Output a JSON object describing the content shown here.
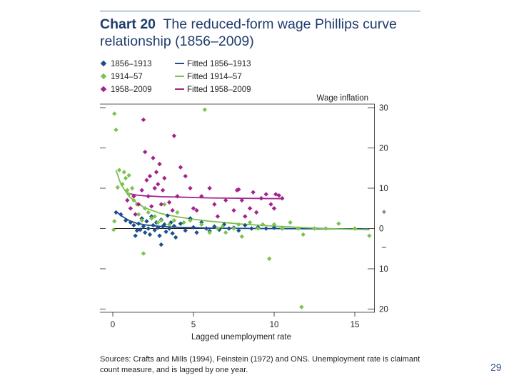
{
  "header": {
    "chart_number": "Chart 20",
    "title_line1": "The reduced-form wage Phillips curve",
    "title_line2": "relationship (1856–2009)"
  },
  "legend": {
    "markers": [
      {
        "label": "1856–1913",
        "color": "#1c4f8c"
      },
      {
        "label": "1914–57",
        "color": "#7dc24f"
      },
      {
        "label": "1958–2009",
        "color": "#a3238e"
      }
    ],
    "lines": [
      {
        "label": "Fitted 1856–1913",
        "color": "#1c4f8c"
      },
      {
        "label": "Fitted 1914–57",
        "color": "#7dc24f"
      },
      {
        "label": "Fitted 1958–2009",
        "color": "#a3238e"
      }
    ]
  },
  "axis": {
    "y_title": "Wage inflation",
    "x_title": "Lagged unemployment rate",
    "plus_sign": "+",
    "minus_sign": "–"
  },
  "footer": {
    "sources_line1": "Sources: Crafts and Mills (1994), Feinstein (1972) and ONS. Unemployment rate is claimant",
    "sources_line2": "count measure, and is lagged by one year."
  },
  "page_number": "29",
  "chart_data": {
    "type": "scatter",
    "title": "The reduced-form wage Phillips curve relationship (1856–2009)",
    "xlabel": "Lagged unemployment rate",
    "ylabel": "Wage inflation",
    "xlim": [
      -0.5,
      16
    ],
    "ylim": [
      -20,
      30
    ],
    "x_ticks": [
      0,
      5,
      10,
      15
    ],
    "y_ticks": [
      30,
      20,
      10,
      0,
      -10,
      -20
    ],
    "y_tick_labels": [
      "30",
      "20",
      "10",
      "0",
      "10",
      "20"
    ],
    "series": [
      {
        "name": "1856–1913",
        "color": "#1c4f8c",
        "points": [
          [
            0.2,
            4
          ],
          [
            0.5,
            3.5
          ],
          [
            0.8,
            2
          ],
          [
            1.1,
            1.5
          ],
          [
            1.3,
            0.8
          ],
          [
            1.5,
            -0.5
          ],
          [
            1.4,
            -1.8
          ],
          [
            1.6,
            1.2
          ],
          [
            1.7,
            -0.3
          ],
          [
            1.8,
            2.5
          ],
          [
            1.9,
            0.5
          ],
          [
            2.0,
            -1
          ],
          [
            2.1,
            1.8
          ],
          [
            2.2,
            0
          ],
          [
            2.3,
            -1.5
          ],
          [
            2.4,
            3
          ],
          [
            2.5,
            0.8
          ],
          [
            2.6,
            -0.4
          ],
          [
            2.7,
            1.5
          ],
          [
            2.8,
            0.2
          ],
          [
            2.9,
            -1.8
          ],
          [
            3.0,
            2.2
          ],
          [
            3.0,
            -4
          ],
          [
            3.1,
            0.5
          ],
          [
            3.2,
            1
          ],
          [
            3.3,
            -0.8
          ],
          [
            3.4,
            3.2
          ],
          [
            3.5,
            0
          ],
          [
            3.6,
            1.5
          ],
          [
            3.7,
            -1.2
          ],
          [
            3.8,
            0.6
          ],
          [
            3.9,
            -2.2
          ],
          [
            4.2,
            1.2
          ],
          [
            4.5,
            -0.5
          ],
          [
            4.8,
            2.5
          ],
          [
            5.0,
            0.3
          ],
          [
            5.2,
            -1
          ],
          [
            5.5,
            1.5
          ],
          [
            5.8,
            0
          ],
          [
            6.0,
            -0.6
          ],
          [
            6.3,
            0.5
          ],
          [
            6.6,
            -0.3
          ],
          [
            6.9,
            1.0
          ],
          [
            7.2,
            0
          ],
          [
            7.5,
            0.2
          ],
          [
            7.8,
            -0.5
          ],
          [
            8.2,
            0.8
          ],
          [
            8.6,
            0
          ],
          [
            9.0,
            0.3
          ],
          [
            9.5,
            0
          ],
          [
            10.0,
            0.2
          ],
          [
            10.5,
            0
          ]
        ]
      },
      {
        "name": "1914–57",
        "color": "#7dc24f",
        "points": [
          [
            0.1,
            28.5
          ],
          [
            0.2,
            24.5
          ],
          [
            0.1,
            1.8
          ],
          [
            0.05,
            -0.3
          ],
          [
            0.3,
            10.2
          ],
          [
            0.4,
            14.5
          ],
          [
            0.6,
            11
          ],
          [
            0.7,
            14
          ],
          [
            0.8,
            12.5
          ],
          [
            0.9,
            9.5
          ],
          [
            1.0,
            8.5
          ],
          [
            1.0,
            13.2
          ],
          [
            1.2,
            10
          ],
          [
            1.3,
            7
          ],
          [
            1.5,
            6
          ],
          [
            1.6,
            3.5
          ],
          [
            1.8,
            2
          ],
          [
            1.9,
            -6.2
          ],
          [
            2.0,
            5
          ],
          [
            2.2,
            4
          ],
          [
            2.4,
            2.5
          ],
          [
            2.6,
            3
          ],
          [
            2.8,
            1.5
          ],
          [
            3.0,
            2
          ],
          [
            3.2,
            6
          ],
          [
            3.5,
            1
          ],
          [
            3.8,
            2
          ],
          [
            4.0,
            4
          ],
          [
            4.4,
            1.5
          ],
          [
            4.8,
            2
          ],
          [
            5.5,
            1
          ],
          [
            5.7,
            29.5
          ],
          [
            6.0,
            -1
          ],
          [
            6.5,
            0
          ],
          [
            6.8,
            0.5
          ],
          [
            7.0,
            -1
          ],
          [
            7.5,
            0
          ],
          [
            7.8,
            1
          ],
          [
            8.0,
            -2
          ],
          [
            8.5,
            1.5
          ],
          [
            9.0,
            0
          ],
          [
            9.3,
            1
          ],
          [
            9.7,
            -7.5
          ],
          [
            10.0,
            1
          ],
          [
            10.5,
            0
          ],
          [
            11.0,
            1.5
          ],
          [
            11.5,
            0
          ],
          [
            11.7,
            -19.5
          ],
          [
            11.8,
            -1.5
          ],
          [
            12.5,
            0
          ],
          [
            13.2,
            0
          ],
          [
            14.0,
            1.2
          ],
          [
            15.0,
            0
          ],
          [
            15.9,
            -1.8
          ]
        ]
      },
      {
        "name": "1958–2009",
        "color": "#a3238e",
        "points": [
          [
            0.9,
            7
          ],
          [
            1.1,
            5
          ],
          [
            1.3,
            8
          ],
          [
            1.4,
            3.5
          ],
          [
            1.6,
            6
          ],
          [
            1.8,
            9.5
          ],
          [
            1.9,
            27
          ],
          [
            2.0,
            19
          ],
          [
            2.1,
            12
          ],
          [
            2.2,
            8
          ],
          [
            2.3,
            13
          ],
          [
            2.4,
            5.5
          ],
          [
            2.5,
            17.5
          ],
          [
            2.6,
            10
          ],
          [
            2.7,
            14
          ],
          [
            2.8,
            11
          ],
          [
            2.9,
            16
          ],
          [
            3.0,
            6
          ],
          [
            3.1,
            9.5
          ],
          [
            3.2,
            12.5
          ],
          [
            3.5,
            6.5
          ],
          [
            3.7,
            4.5
          ],
          [
            3.8,
            23
          ],
          [
            4.0,
            8
          ],
          [
            4.2,
            15.2
          ],
          [
            4.5,
            13
          ],
          [
            4.8,
            10
          ],
          [
            5.0,
            5
          ],
          [
            5.2,
            4.5
          ],
          [
            5.5,
            8
          ],
          [
            6.0,
            10
          ],
          [
            6.3,
            6
          ],
          [
            6.5,
            3
          ],
          [
            7.0,
            7
          ],
          [
            7.5,
            4.5
          ],
          [
            7.7,
            9.5
          ],
          [
            7.8,
            9.7
          ],
          [
            8.0,
            7
          ],
          [
            8.2,
            3
          ],
          [
            8.5,
            5
          ],
          [
            8.7,
            9
          ],
          [
            8.9,
            4
          ],
          [
            9.2,
            7.5
          ],
          [
            9.5,
            8.5
          ],
          [
            9.8,
            6
          ],
          [
            10.0,
            5
          ],
          [
            10.1,
            8.5
          ],
          [
            10.3,
            8.2
          ],
          [
            10.5,
            7.5
          ]
        ]
      }
    ],
    "fitted": [
      {
        "name": "Fitted 1856–1913",
        "color": "#1c4f8c",
        "x_range": [
          0.2,
          15.9
        ],
        "points": [
          [
            0.2,
            4.3
          ],
          [
            0.5,
            3.2
          ],
          [
            1,
            2
          ],
          [
            1.5,
            1.3
          ],
          [
            2,
            0.9
          ],
          [
            3,
            0.5
          ],
          [
            4,
            0.3
          ],
          [
            6,
            0.1
          ],
          [
            9,
            0
          ],
          [
            12,
            -0.05
          ],
          [
            15.9,
            -0.1
          ]
        ]
      },
      {
        "name": "Fitted 1914–57",
        "color": "#7dc24f",
        "x_range": [
          0.2,
          15.9
        ],
        "points": [
          [
            0.2,
            14.5
          ],
          [
            0.5,
            11
          ],
          [
            1,
            8
          ],
          [
            1.5,
            6.3
          ],
          [
            2,
            5.1
          ],
          [
            3,
            3.7
          ],
          [
            4,
            2.9
          ],
          [
            5,
            2.3
          ],
          [
            6,
            1.8
          ],
          [
            8,
            1.1
          ],
          [
            10,
            0.6
          ],
          [
            12,
            0.2
          ],
          [
            14,
            -0.1
          ],
          [
            15.9,
            -0.3
          ]
        ]
      },
      {
        "name": "Fitted 1958–2009",
        "color": "#a3238e",
        "x_range": [
          0.9,
          10.6
        ],
        "points": [
          [
            0.9,
            8.7
          ],
          [
            1.5,
            8.3
          ],
          [
            2,
            8.1
          ],
          [
            3,
            7.9
          ],
          [
            4,
            7.8
          ],
          [
            6,
            7.6
          ],
          [
            8,
            7.5
          ],
          [
            10.6,
            7.4
          ]
        ]
      }
    ]
  }
}
